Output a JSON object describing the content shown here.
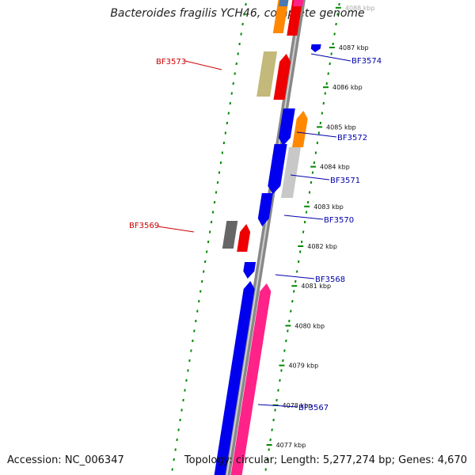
{
  "title": "Bacteroides fragilis YCH46, complete genome",
  "accession": "Accession: NC_006347",
  "summary": "Topology: circular; Length: 5,277,274 bp; Genes: 4,670",
  "colors": {
    "backbone": "#888888",
    "forward_label": "#cc0000",
    "reverse_label": "#0000aa",
    "tick_green": "#008800",
    "blue": "#0000ee",
    "red": "#ee0000",
    "orange": "#ff8800",
    "light_gray": "#c8c8c8",
    "dark_gray": "#666666",
    "olive": "#c2b97a",
    "pink": "#ff2288",
    "steel_blue": "#4a7ab0"
  },
  "ticks": [
    {
      "label": "4088 kbp",
      "faded": true
    },
    {
      "label": "4087 kbp"
    },
    {
      "label": "4086 kbp"
    },
    {
      "label": "4085 kbp"
    },
    {
      "label": "4084 kbp"
    },
    {
      "label": "4083 kbp"
    },
    {
      "label": "4082 kbp"
    },
    {
      "label": "4081 kbp"
    },
    {
      "label": "4080 kbp"
    },
    {
      "label": "4079 kbp"
    },
    {
      "label": "4078 kbp"
    },
    {
      "label": "4077 kbp"
    }
  ],
  "gene_labels": [
    {
      "name": "BF3574",
      "strand": "reverse"
    },
    {
      "name": "BF3573",
      "strand": "forward"
    },
    {
      "name": "BF3572",
      "strand": "reverse"
    },
    {
      "name": "BF3571",
      "strand": "reverse"
    },
    {
      "name": "BF3570",
      "strand": "reverse"
    },
    {
      "name": "BF3569",
      "strand": "forward"
    },
    {
      "name": "BF3568",
      "strand": "reverse"
    },
    {
      "name": "BF3567",
      "strand": "reverse"
    }
  ],
  "features": [
    {
      "name": "orange-top",
      "color": "orange"
    },
    {
      "name": "steel-top",
      "color": "steel_blue"
    },
    {
      "name": "red-top",
      "color": "red"
    },
    {
      "name": "pink-top",
      "color": "pink"
    },
    {
      "name": "olive-bf3573",
      "color": "olive"
    },
    {
      "name": "red-bf3573",
      "color": "red"
    },
    {
      "name": "blue-bf3574",
      "color": "blue"
    },
    {
      "name": "blue-bf3572",
      "color": "blue"
    },
    {
      "name": "orange-bf3572",
      "color": "orange"
    },
    {
      "name": "blue-bf3571",
      "color": "blue"
    },
    {
      "name": "gray-bf3571",
      "color": "light_gray"
    },
    {
      "name": "blue-bf3570",
      "color": "blue"
    },
    {
      "name": "darkgray-bf3569",
      "color": "dark_gray"
    },
    {
      "name": "red-bf3569",
      "color": "red"
    },
    {
      "name": "blue-bf3568",
      "color": "blue"
    },
    {
      "name": "blue-bf3567",
      "color": "blue"
    },
    {
      "name": "pink-bf3567",
      "color": "pink"
    }
  ]
}
